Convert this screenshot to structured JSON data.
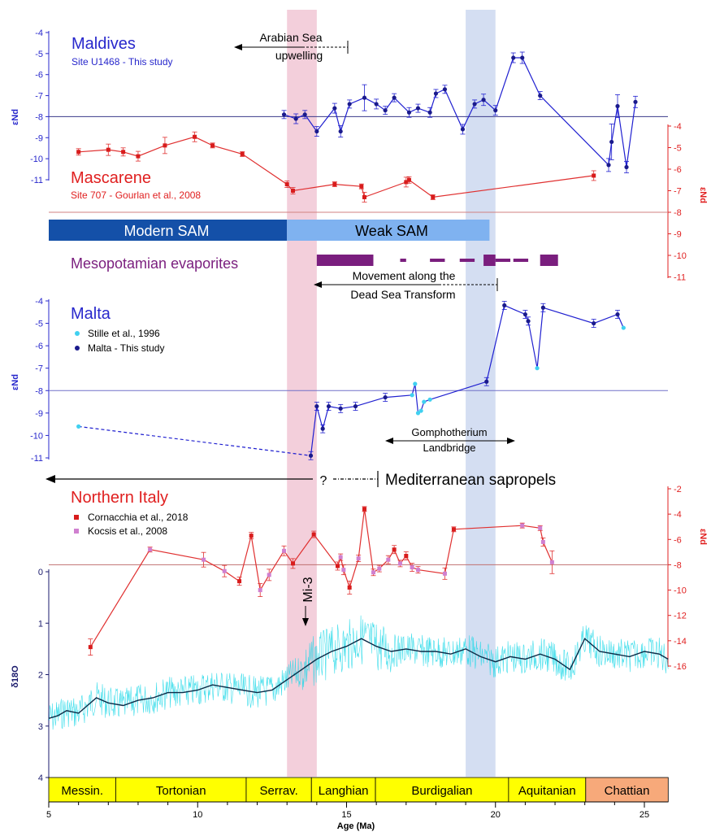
{
  "chart_data": {
    "type": "scatter",
    "x_axis": {
      "label": "Age (Ma)",
      "range": [
        5,
        26
      ],
      "ticks": [
        5,
        10,
        15,
        20,
        25
      ]
    },
    "bands": [
      {
        "color": "#e8a0b8",
        "range": [
          13.0,
          14.0
        ]
      },
      {
        "color": "#a9bde6",
        "range": [
          19.0,
          20.0
        ]
      }
    ],
    "maldives": {
      "title": "Maldives",
      "subtitle": "Site U1468 - This study",
      "ylabel": "εNd",
      "yticks": [
        -4,
        -5,
        -6,
        -7,
        -8,
        -9,
        -10,
        -11
      ],
      "ref_line": -8,
      "color": "#2020d0",
      "points": [
        [
          12.9,
          -7.9
        ],
        [
          13.3,
          -8.1
        ],
        [
          13.6,
          -7.9
        ],
        [
          14.0,
          -8.7
        ],
        [
          14.6,
          -7.6
        ],
        [
          14.8,
          -8.7
        ],
        [
          15.1,
          -7.4
        ],
        [
          15.6,
          -7.1
        ],
        [
          16.0,
          -7.4
        ],
        [
          16.3,
          -7.7
        ],
        [
          16.6,
          -7.1
        ],
        [
          17.1,
          -7.8
        ],
        [
          17.4,
          -7.6
        ],
        [
          17.8,
          -7.8
        ],
        [
          18.0,
          -6.9
        ],
        [
          18.3,
          -6.7
        ],
        [
          18.9,
          -8.6
        ],
        [
          19.3,
          -7.4
        ],
        [
          19.6,
          -7.2
        ],
        [
          20.0,
          -7.7
        ],
        [
          20.6,
          -5.2
        ],
        [
          20.9,
          -5.2
        ],
        [
          21.5,
          -7.0
        ],
        [
          23.8,
          -10.3
        ],
        [
          23.9,
          -9.2
        ],
        [
          24.1,
          -7.5
        ],
        [
          24.4,
          -10.4
        ],
        [
          24.7,
          -7.3
        ]
      ]
    },
    "mascarene": {
      "title": "Mascarene",
      "subtitle": "Site 707 - Gourlan et al., 2008",
      "ylabel": "εNd",
      "yticks": [
        -4,
        -5,
        -6,
        -7,
        -8,
        -9,
        -10,
        -11
      ],
      "ref_line": -8,
      "color": "#e03030",
      "points": [
        [
          6.0,
          -5.2
        ],
        [
          7.0,
          -5.1
        ],
        [
          7.5,
          -5.2
        ],
        [
          8.0,
          -5.4
        ],
        [
          8.9,
          -4.9
        ],
        [
          9.9,
          -4.5
        ],
        [
          10.5,
          -4.9
        ],
        [
          11.5,
          -5.3
        ],
        [
          13.0,
          -6.7
        ],
        [
          13.2,
          -7.0
        ],
        [
          14.6,
          -6.7
        ],
        [
          15.5,
          -6.8
        ],
        [
          15.6,
          -7.3
        ],
        [
          17.0,
          -6.6
        ],
        [
          17.1,
          -6.5
        ],
        [
          17.9,
          -7.3
        ],
        [
          23.3,
          -6.3
        ]
      ]
    },
    "sam": [
      {
        "label": "Modern SAM",
        "color": "#1450a8",
        "range": [
          5,
          13
        ]
      },
      {
        "label": "Weak SAM",
        "color": "#7fb2f0",
        "range": [
          13,
          19.8
        ]
      }
    ],
    "evaporites": {
      "label": "Mesopotamian evaporites",
      "color": "#7a1e7e",
      "segments": [
        [
          14.0,
          15.9
        ],
        [
          16.8,
          17.0
        ],
        [
          17.8,
          18.3
        ],
        [
          18.8,
          19.3
        ],
        [
          19.6,
          20.0
        ],
        [
          20.0,
          20.5
        ],
        [
          20.6,
          21.1
        ],
        [
          21.5,
          22.1
        ]
      ]
    },
    "annotations": {
      "arabian": "Arabian Sea",
      "upwelling": "upwelling",
      "dst1": "Movement along the",
      "dst2": "Dead Sea Transform",
      "gompho1": "Gomphotherium",
      "gompho2": "Landbridge",
      "question": "?",
      "sapropels": "Mediterranean sapropels",
      "mi3": "Mi-3"
    },
    "malta": {
      "title": "Malta",
      "legend": [
        "Stille et al., 1996",
        "Malta - This study"
      ],
      "ylabel": "εNd",
      "yticks": [
        -4,
        -5,
        -6,
        -7,
        -8,
        -9,
        -10,
        -11
      ],
      "ref_line": -8,
      "line_color": "#2020d0",
      "this_study_color": "#1a1a8c",
      "stille_color": "#40d0f0",
      "points": [
        [
          6.0,
          -9.6
        ],
        [
          13.8,
          -10.9
        ],
        [
          14.0,
          -8.7
        ],
        [
          14.2,
          -9.7
        ],
        [
          14.4,
          -8.7
        ],
        [
          14.8,
          -8.8
        ],
        [
          15.3,
          -8.7
        ],
        [
          16.3,
          -8.3
        ],
        [
          17.2,
          -8.2
        ],
        [
          17.3,
          -7.7
        ],
        [
          17.4,
          -9.0
        ],
        [
          17.5,
          -8.9
        ],
        [
          17.6,
          -8.5
        ],
        [
          17.8,
          -8.4
        ],
        [
          19.7,
          -7.6
        ],
        [
          20.3,
          -4.2
        ],
        [
          21.0,
          -4.6
        ],
        [
          21.1,
          -4.9
        ],
        [
          21.4,
          -7.0
        ],
        [
          21.6,
          -4.3
        ],
        [
          23.3,
          -5.0
        ],
        [
          24.1,
          -4.6
        ],
        [
          24.3,
          -5.2
        ]
      ]
    },
    "italy": {
      "title": "Northern Italy",
      "legend": [
        "Cornacchia et al., 2018",
        "Kocsis et al., 2008"
      ],
      "ylabel": "εNd",
      "yticks": [
        -2,
        -4,
        -6,
        -8,
        -10,
        -12,
        -14,
        -16
      ],
      "ref_line": -8,
      "color": "#e03030",
      "kocsis_color": "#d080d0",
      "points": [
        [
          6.4,
          -14.5
        ],
        [
          8.4,
          -6.8
        ],
        [
          10.2,
          -7.6
        ],
        [
          10.9,
          -8.5
        ],
        [
          11.4,
          -9.3
        ],
        [
          11.8,
          -5.7
        ],
        [
          12.1,
          -10.0
        ],
        [
          12.4,
          -8.8
        ],
        [
          12.9,
          -6.9
        ],
        [
          13.2,
          -7.9
        ],
        [
          13.9,
          -5.6
        ],
        [
          14.7,
          -8.1
        ],
        [
          14.8,
          -7.4
        ],
        [
          14.9,
          -8.4
        ],
        [
          15.1,
          -9.8
        ],
        [
          15.4,
          -7.5
        ],
        [
          15.6,
          -3.6
        ],
        [
          15.9,
          -8.6
        ],
        [
          16.1,
          -8.3
        ],
        [
          16.4,
          -7.6
        ],
        [
          16.6,
          -6.8
        ],
        [
          16.8,
          -7.9
        ],
        [
          17.0,
          -7.3
        ],
        [
          17.2,
          -8.2
        ],
        [
          17.4,
          -8.4
        ],
        [
          18.3,
          -8.7
        ],
        [
          18.6,
          -5.2
        ],
        [
          20.9,
          -4.9
        ],
        [
          21.5,
          -5.1
        ],
        [
          21.6,
          -6.2
        ],
        [
          21.9,
          -7.8
        ]
      ]
    },
    "d18o": {
      "ylabel": "δ18O",
      "yticks": [
        0,
        1,
        2,
        3,
        4
      ],
      "raw_color": "#20d8e8",
      "smooth_color": "#0c2c48",
      "smooth": [
        [
          5.0,
          2.85
        ],
        [
          5.3,
          2.8
        ],
        [
          5.6,
          2.7
        ],
        [
          6.0,
          2.75
        ],
        [
          6.3,
          2.6
        ],
        [
          6.6,
          2.45
        ],
        [
          7.0,
          2.55
        ],
        [
          7.5,
          2.6
        ],
        [
          8.0,
          2.5
        ],
        [
          8.5,
          2.45
        ],
        [
          9.0,
          2.35
        ],
        [
          9.5,
          2.35
        ],
        [
          10.0,
          2.3
        ],
        [
          10.5,
          2.2
        ],
        [
          11.0,
          2.25
        ],
        [
          11.5,
          2.3
        ],
        [
          12.0,
          2.35
        ],
        [
          12.5,
          2.3
        ],
        [
          13.0,
          2.1
        ],
        [
          13.5,
          1.9
        ],
        [
          14.0,
          1.7
        ],
        [
          14.5,
          1.55
        ],
        [
          15.0,
          1.45
        ],
        [
          15.5,
          1.3
        ],
        [
          16.0,
          1.45
        ],
        [
          16.5,
          1.55
        ],
        [
          17.0,
          1.5
        ],
        [
          17.5,
          1.55
        ],
        [
          18.0,
          1.55
        ],
        [
          18.5,
          1.6
        ],
        [
          19.0,
          1.5
        ],
        [
          19.5,
          1.65
        ],
        [
          20.0,
          1.75
        ],
        [
          20.5,
          1.65
        ],
        [
          21.0,
          1.7
        ],
        [
          21.5,
          1.6
        ],
        [
          22.0,
          1.7
        ],
        [
          22.5,
          1.9
        ],
        [
          23.0,
          1.3
        ],
        [
          23.5,
          1.55
        ],
        [
          24.0,
          1.6
        ],
        [
          24.5,
          1.65
        ],
        [
          25.0,
          1.55
        ],
        [
          25.5,
          1.6
        ],
        [
          25.8,
          1.7
        ]
      ]
    },
    "stages": [
      {
        "label": "Messin.",
        "range": [
          5.0,
          7.25
        ],
        "color": "#ffff00"
      },
      {
        "label": "Tortonian",
        "range": [
          7.25,
          11.63
        ],
        "color": "#ffff00"
      },
      {
        "label": "Serrav.",
        "range": [
          11.63,
          13.82
        ],
        "color": "#ffff00"
      },
      {
        "label": "Langhian",
        "range": [
          13.82,
          15.97
        ],
        "color": "#ffff00"
      },
      {
        "label": "Burdigalian",
        "range": [
          15.97,
          20.44
        ],
        "color": "#ffff00"
      },
      {
        "label": "Aquitanian",
        "range": [
          20.44,
          23.03
        ],
        "color": "#ffff00"
      },
      {
        "label": "Chattian",
        "range": [
          23.03,
          25.8
        ],
        "color": "#f7a97a"
      }
    ]
  }
}
